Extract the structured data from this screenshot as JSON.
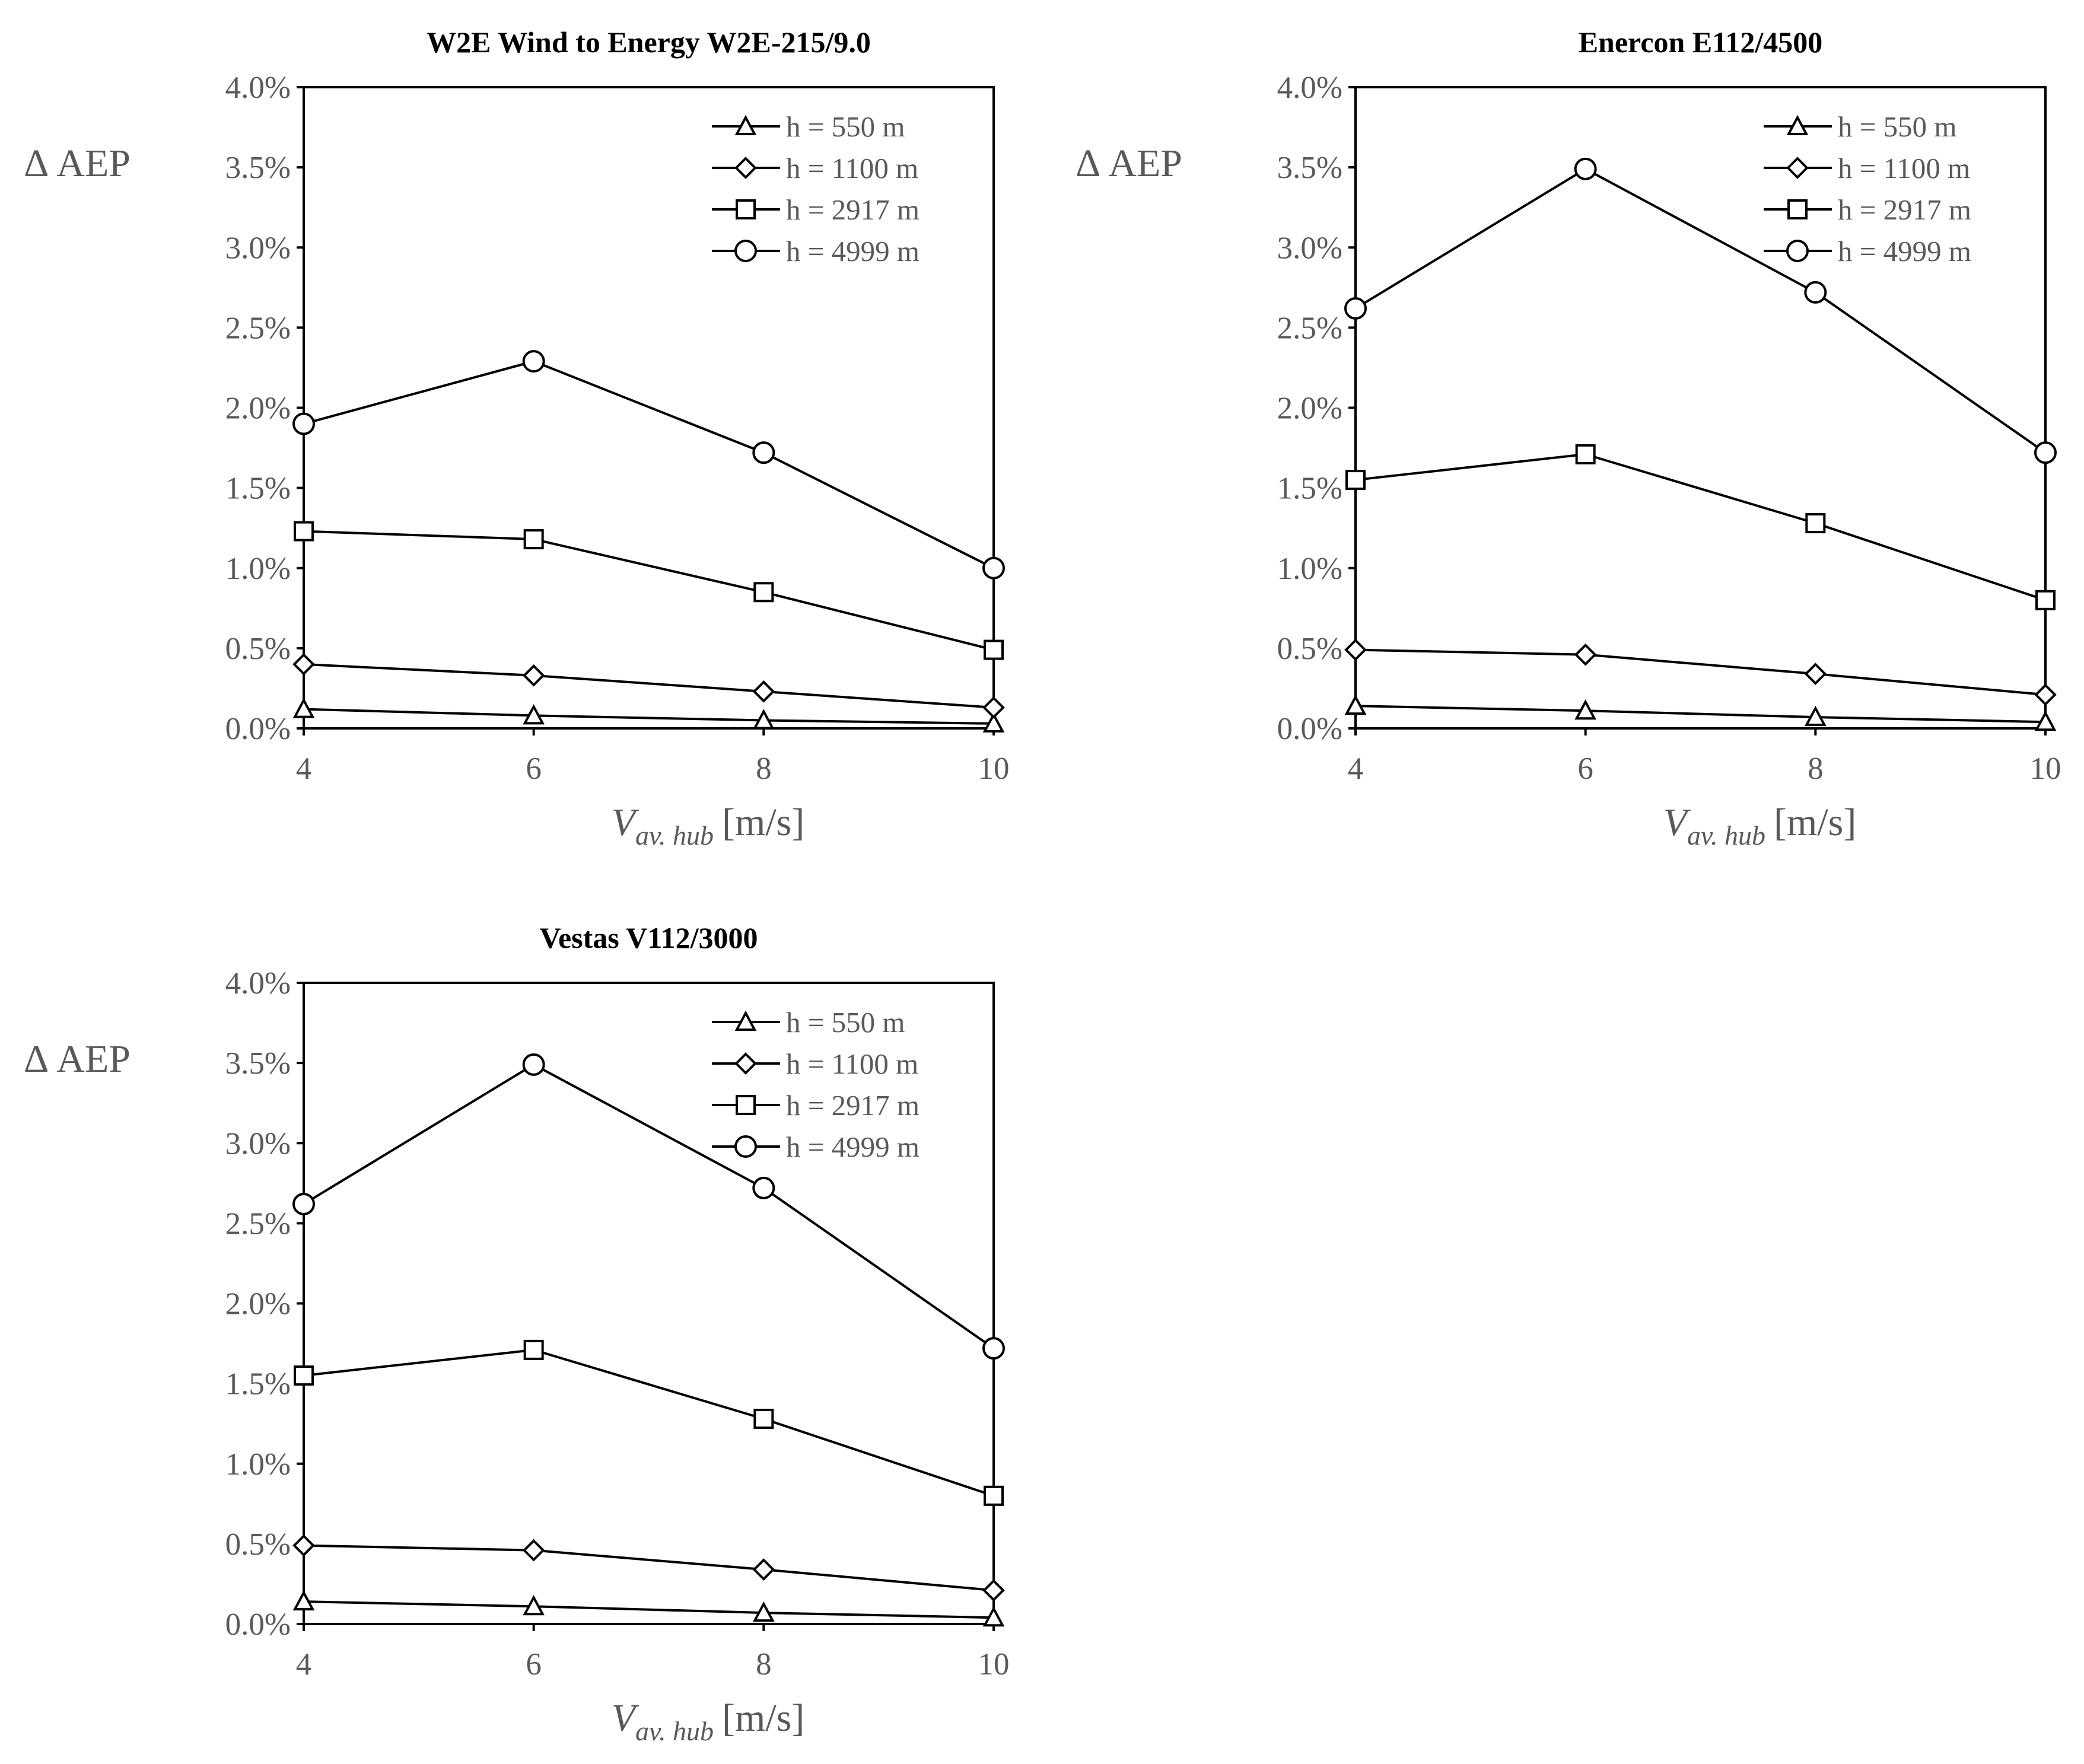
{
  "chart_data": [
    {
      "type": "line",
      "title": "W2E Wind to Energy W2E-215/9.0",
      "ylabel": "Δ AEP",
      "xlabel_main": "V",
      "xlabel_sub": "av. hub",
      "xlabel_unit": "[m/s]",
      "x": [
        4,
        6,
        8,
        10
      ],
      "xticks": [
        "4",
        "6",
        "8",
        "10"
      ],
      "xlim": [
        4,
        10
      ],
      "ylim": [
        0,
        4.0
      ],
      "yticks": [
        "0.0%",
        "0.5%",
        "1.0%",
        "1.5%",
        "2.0%",
        "2.5%",
        "3.0%",
        "3.5%",
        "4.0%"
      ],
      "legend_position": "top-right",
      "series": [
        {
          "name": "h = 550 m",
          "marker": "triangle",
          "values": [
            0.12,
            0.08,
            0.05,
            0.03
          ]
        },
        {
          "name": "h = 1100 m",
          "marker": "diamond",
          "values": [
            0.4,
            0.33,
            0.23,
            0.13
          ]
        },
        {
          "name": "h = 2917 m",
          "marker": "square",
          "values": [
            1.23,
            1.18,
            0.85,
            0.49
          ]
        },
        {
          "name": "h = 4999 m",
          "marker": "circle",
          "values": [
            1.9,
            2.29,
            1.72,
            1.0
          ]
        }
      ]
    },
    {
      "type": "line",
      "title": "Enercon E112/4500",
      "ylabel": "Δ AEP",
      "xlabel_main": "V",
      "xlabel_sub": "av. hub",
      "xlabel_unit": "[m/s]",
      "x": [
        4,
        6,
        8,
        10
      ],
      "xticks": [
        "4",
        "6",
        "8",
        "10"
      ],
      "xlim": [
        4,
        10
      ],
      "ylim": [
        0,
        4.0
      ],
      "yticks": [
        "0.0%",
        "0.5%",
        "1.0%",
        "1.5%",
        "2.0%",
        "2.5%",
        "3.0%",
        "3.5%",
        "4.0%"
      ],
      "legend_position": "top-right",
      "series": [
        {
          "name": "h = 550 m",
          "marker": "triangle",
          "values": [
            0.14,
            0.11,
            0.07,
            0.04
          ]
        },
        {
          "name": "h = 1100 m",
          "marker": "diamond",
          "values": [
            0.49,
            0.46,
            0.34,
            0.21
          ]
        },
        {
          "name": "h = 2917 m",
          "marker": "square",
          "values": [
            1.55,
            1.71,
            1.28,
            0.8
          ]
        },
        {
          "name": "h = 4999 m",
          "marker": "circle",
          "values": [
            2.62,
            3.49,
            2.72,
            1.72
          ]
        }
      ]
    },
    {
      "type": "line",
      "title": "Vestas V112/3000",
      "ylabel": "Δ AEP",
      "xlabel_main": "V",
      "xlabel_sub": "av. hub",
      "xlabel_unit": "[m/s]",
      "x": [
        4,
        6,
        8,
        10
      ],
      "xticks": [
        "4",
        "6",
        "8",
        "10"
      ],
      "xlim": [
        4,
        10
      ],
      "ylim": [
        0,
        4.0
      ],
      "yticks": [
        "0.0%",
        "0.5%",
        "1.0%",
        "1.5%",
        "2.0%",
        "2.5%",
        "3.0%",
        "3.5%",
        "4.0%"
      ],
      "legend_position": "top-right",
      "series": [
        {
          "name": "h = 550 m",
          "marker": "triangle",
          "values": [
            0.14,
            0.11,
            0.07,
            0.04
          ]
        },
        {
          "name": "h = 1100 m",
          "marker": "diamond",
          "values": [
            0.49,
            0.46,
            0.34,
            0.21
          ]
        },
        {
          "name": "h = 2917 m",
          "marker": "square",
          "values": [
            1.55,
            1.71,
            1.28,
            0.8
          ]
        },
        {
          "name": "h = 4999 m",
          "marker": "circle",
          "values": [
            2.62,
            3.49,
            2.72,
            1.72
          ]
        }
      ]
    }
  ]
}
